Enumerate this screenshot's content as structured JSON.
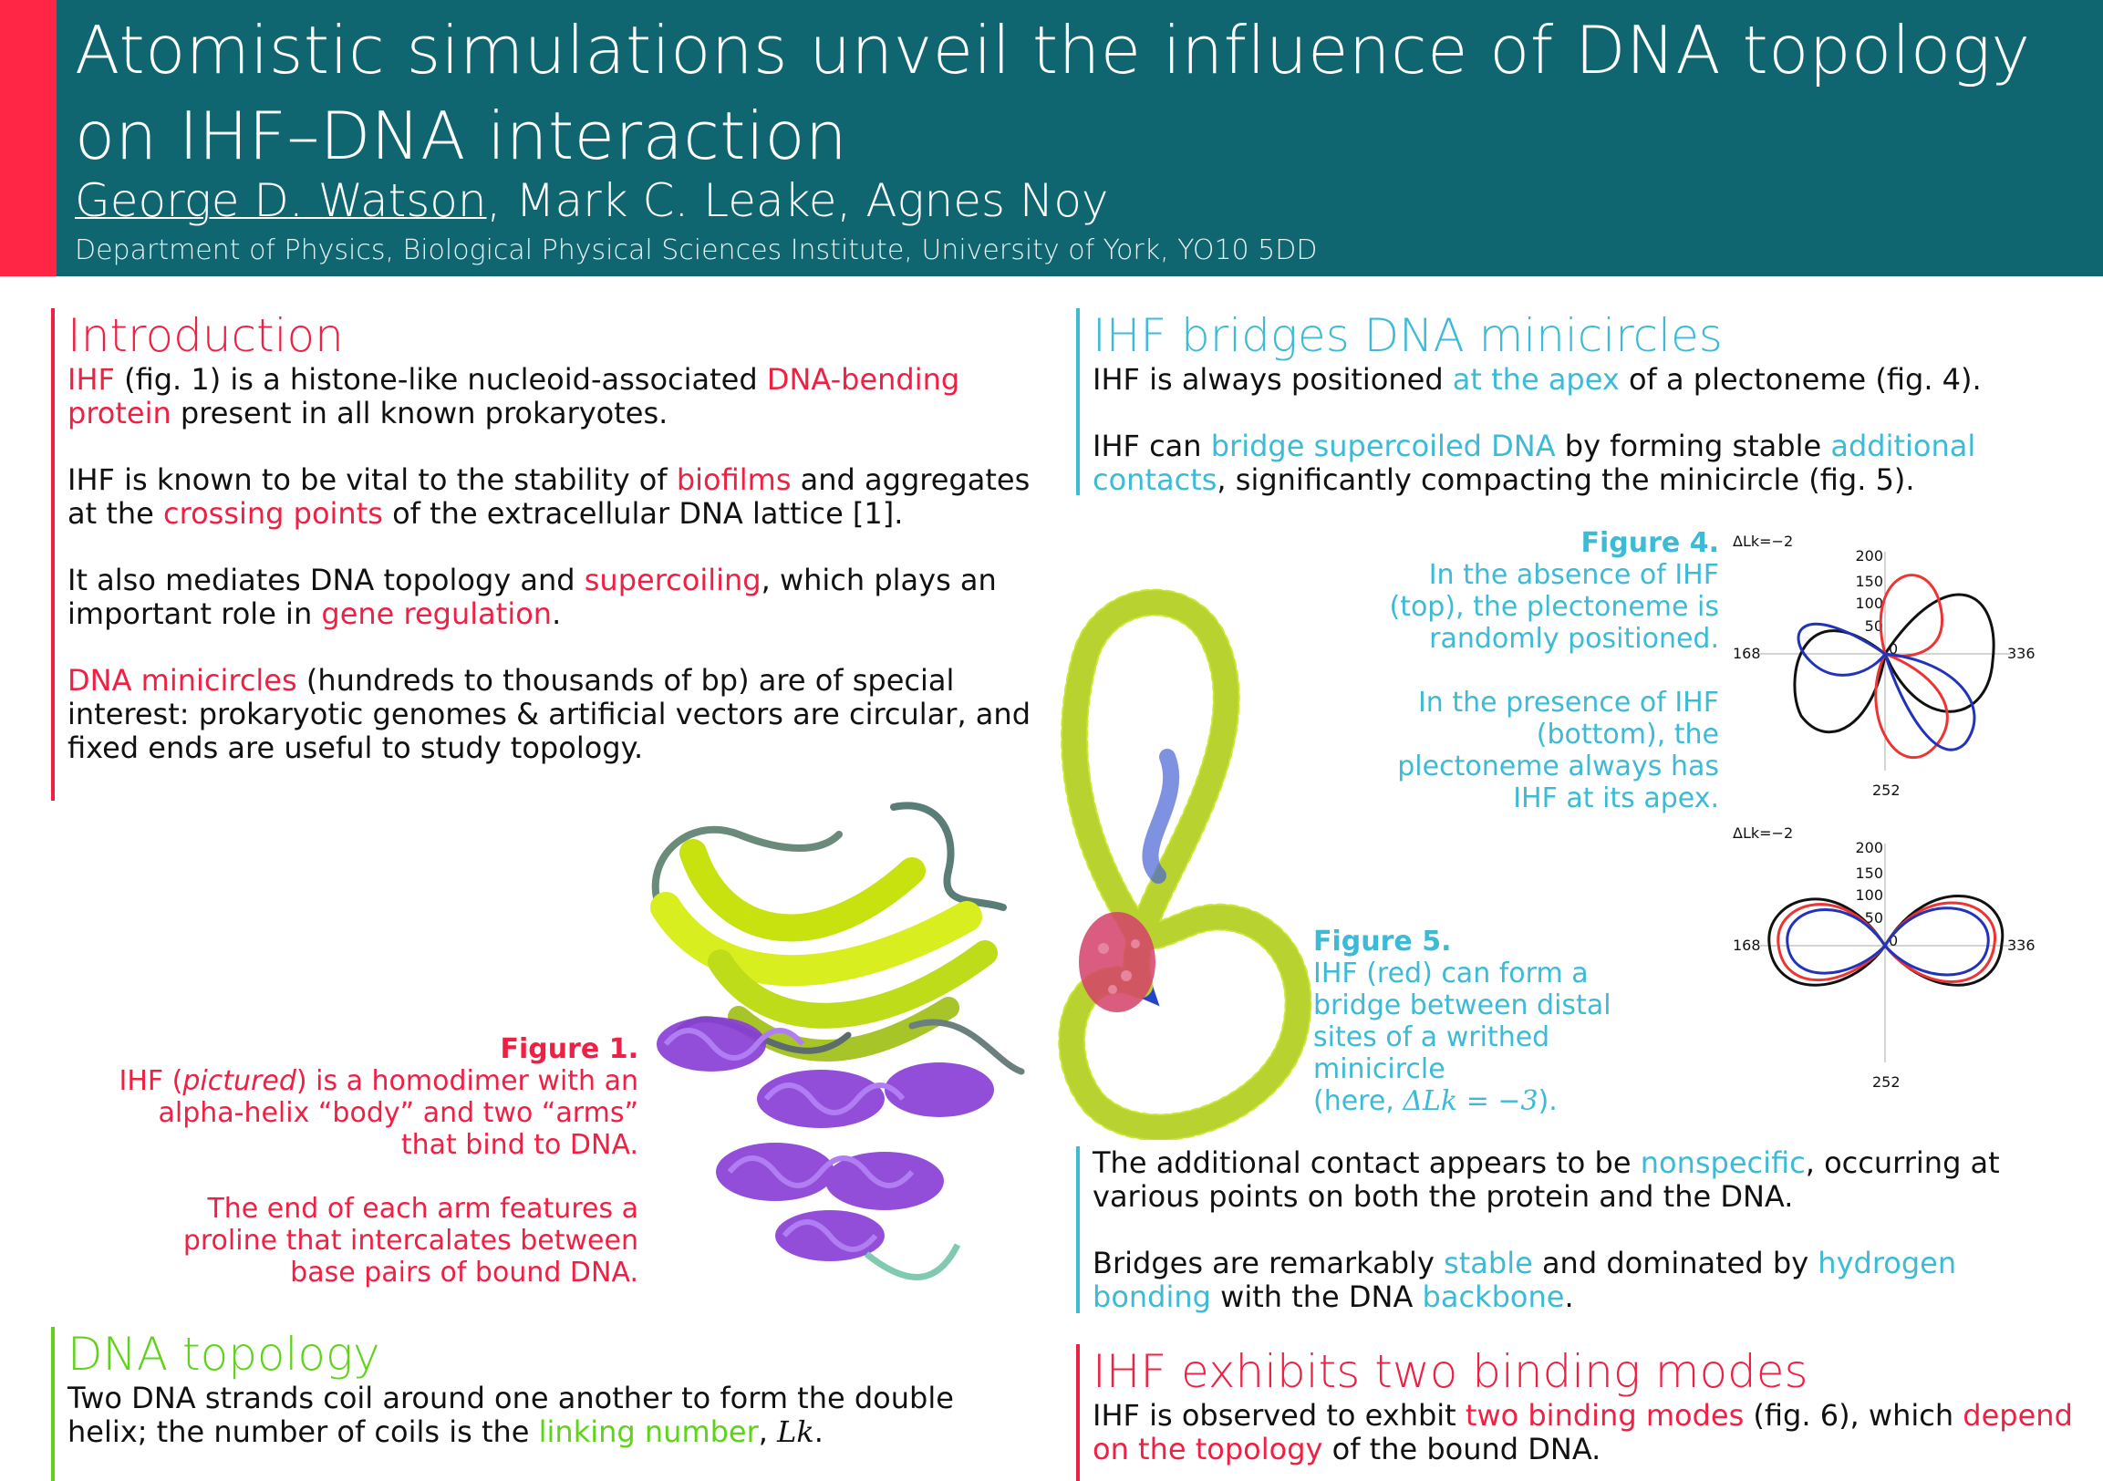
{
  "header": {
    "title_line1": "Atomistic simulations unveil the influence of DNA topology",
    "title_line2": "on IHF–DNA interaction",
    "presenter": "George D. Watson",
    "coauthors": ", Mark C. Leake, Agnes Noy",
    "affiliation": "Department of Physics, Biological Physical Sciences Institute, University of York, YO10 5DD"
  },
  "introduction": {
    "heading": "Introduction",
    "p1": [
      {
        "t": "IHF",
        "c": "red"
      },
      {
        "t": " (fig. 1) is a histone-like nucleoid-associated ",
        "c": ""
      },
      {
        "t": "DNA-bending protein",
        "c": "red"
      },
      {
        "t": " present in all known prokaryotes.",
        "c": ""
      }
    ],
    "p2": [
      {
        "t": "IHF is known to be vital to the stability of ",
        "c": ""
      },
      {
        "t": "biofilms",
        "c": "red"
      },
      {
        "t": " and aggregates at the ",
        "c": ""
      },
      {
        "t": "crossing points",
        "c": "red"
      },
      {
        "t": " of the extracellular DNA lattice [1].",
        "c": ""
      }
    ],
    "p3": [
      {
        "t": "It also mediates DNA topology and ",
        "c": ""
      },
      {
        "t": "supercoiling",
        "c": "red"
      },
      {
        "t": ", which plays an important role in ",
        "c": ""
      },
      {
        "t": "gene regulation",
        "c": "red"
      },
      {
        "t": ".",
        "c": ""
      }
    ],
    "p4": [
      {
        "t": "DNA minicircles",
        "c": "red"
      },
      {
        "t": " (hundreds to thousands of bp) are of special interest: prokaryotic genomes & artificial vectors are circular, and fixed ends are useful to study topology.",
        "c": ""
      }
    ]
  },
  "figure1": {
    "label": "Figure 1.",
    "line1_pre": "IHF (",
    "line1_em": "pictured",
    "line1_post": ") is a homodimer with an  alpha-helix “body” and two “arms” that bind to DNA.",
    "line2": "The end of each arm features a proline that intercalates between base pairs of bound DNA."
  },
  "topology": {
    "heading": "DNA topology",
    "p1": [
      {
        "t": "Two DNA strands coil around one another to form the double helix; the number of coils is the ",
        "c": ""
      },
      {
        "t": "linking number",
        "c": "green"
      },
      {
        "t": ", ",
        "c": ""
      },
      {
        "t": "Lk",
        "c": "math"
      },
      {
        "t": ".",
        "c": ""
      }
    ]
  },
  "bridges": {
    "heading": "IHF bridges DNA minicircles",
    "p1": [
      {
        "t": "IHF is always positioned ",
        "c": ""
      },
      {
        "t": "at the apex",
        "c": "cyan"
      },
      {
        "t": " of a plectoneme (fig. 4).",
        "c": ""
      }
    ],
    "p2": [
      {
        "t": "IHF can ",
        "c": ""
      },
      {
        "t": "bridge supercoiled DNA",
        "c": "cyan"
      },
      {
        "t": " by forming stable ",
        "c": ""
      },
      {
        "t": "additional contacts",
        "c": "cyan"
      },
      {
        "t": ", significantly compacting the minicircle (fig. 5).",
        "c": ""
      }
    ],
    "p3": [
      {
        "t": "The additional contact appears to be ",
        "c": ""
      },
      {
        "t": "nonspecific",
        "c": "cyan"
      },
      {
        "t": ", occurring at various points on both the protein and the DNA.",
        "c": ""
      }
    ],
    "p4": [
      {
        "t": "Bridges are remarkably ",
        "c": ""
      },
      {
        "t": "stable",
        "c": "cyan"
      },
      {
        "t": " and dominated by ",
        "c": ""
      },
      {
        "t": "hydrogen bonding",
        "c": "cyan"
      },
      {
        "t": " with the DNA ",
        "c": ""
      },
      {
        "t": "backbone",
        "c": "cyan"
      },
      {
        "t": ".",
        "c": ""
      }
    ]
  },
  "figure4": {
    "label": "Figure 4.",
    "text1": "In the absence of IHF (top), the plectoneme is randomly positioned.",
    "text2": "In the presence of IHF (bottom), the plectoneme always has IHF at its apex.",
    "panel_title": "ΔLk=−2",
    "radial_ticks": [
      "200",
      "150",
      "100",
      "50",
      "0"
    ],
    "angle_left": "168",
    "angle_right": "336",
    "angle_bottom": "252"
  },
  "figure5": {
    "label": "Figure 5.",
    "text": "IHF (red) can form a bridge between distal sites of a writhed minicircle",
    "text_end_pre": "(here, ",
    "text_end_math": "ΔLk = −3",
    "text_end_post": ")."
  },
  "modes": {
    "heading": "IHF exhibits two binding modes",
    "p1": [
      {
        "t": "IHF is observed to exhbit ",
        "c": ""
      },
      {
        "t": "two binding modes",
        "c": "red"
      },
      {
        "t": " (fig. 6), which ",
        "c": ""
      },
      {
        "t": "depend on the topology",
        "c": "red"
      },
      {
        "t": " of the bound DNA.",
        "c": ""
      }
    ]
  },
  "colors": {
    "header_bg": "#0f6670",
    "accent_red": "#ee2145",
    "accent_cyan": "#3dbad6",
    "accent_green": "#5fd31b"
  }
}
